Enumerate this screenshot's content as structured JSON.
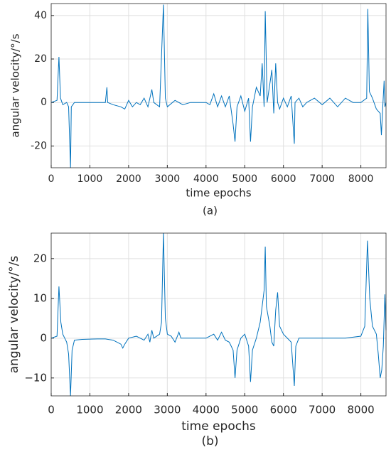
{
  "chart_data": [
    {
      "type": "line",
      "caption": "(a)",
      "x_label": "time epochs",
      "y_label": "angular velocity/°/s",
      "color": "#0072bd",
      "grid": true,
      "xlim": [
        0,
        8650
      ],
      "xticks": [
        0,
        1000,
        2000,
        3000,
        4000,
        5000,
        6000,
        7000,
        8000
      ],
      "ylim": [
        -30,
        45.5
      ],
      "yticks": [
        -20,
        0,
        20,
        40
      ],
      "x": [
        0,
        150,
        200,
        240,
        300,
        400,
        450,
        500,
        520,
        600,
        800,
        1000,
        1200,
        1400,
        1440,
        1460,
        1600,
        1800,
        1900,
        2000,
        2100,
        2200,
        2300,
        2400,
        2500,
        2600,
        2650,
        2800,
        2900,
        2950,
        3000,
        3200,
        3400,
        3600,
        4000,
        4100,
        4200,
        4300,
        4400,
        4500,
        4600,
        4700,
        4750,
        4800,
        4900,
        5000,
        5100,
        5150,
        5200,
        5300,
        5400,
        5450,
        5500,
        5530,
        5580,
        5700,
        5750,
        5800,
        5850,
        5900,
        6000,
        6100,
        6200,
        6280,
        6300,
        6400,
        6500,
        6600,
        6800,
        7000,
        7200,
        7400,
        7600,
        7800,
        8000,
        8150,
        8180,
        8220,
        8300,
        8400,
        8500,
        8530,
        8560,
        8600,
        8620,
        8650
      ],
      "values": [
        0,
        1,
        21,
        2,
        -1,
        0,
        -2,
        -30,
        -2,
        0,
        0,
        0,
        0,
        0,
        7,
        0,
        -1,
        -2,
        -3,
        1,
        -2,
        0,
        -1,
        2,
        -2,
        6,
        0,
        -2,
        45,
        2,
        -2,
        1,
        -1,
        0,
        0,
        -1,
        4,
        -2,
        3,
        -2,
        3,
        -10,
        -18,
        -2,
        3,
        -4,
        2,
        -18,
        -2,
        7,
        3,
        18,
        -2,
        42,
        0,
        15,
        -5,
        18,
        0,
        -3,
        2,
        -2,
        3,
        -19,
        0,
        2,
        -2,
        0,
        2,
        -1,
        2,
        -2,
        2,
        0,
        0,
        2,
        43,
        5,
        2,
        -3,
        -5,
        -15,
        -4,
        10,
        -2,
        0
      ]
    },
    {
      "type": "line",
      "caption": "(b)",
      "x_label": "time epochs",
      "y_label": "angular velocity/°/s",
      "color": "#0072bd",
      "grid": true,
      "xlim": [
        0,
        8650
      ],
      "xticks": [
        0,
        1000,
        2000,
        3000,
        4000,
        5000,
        6000,
        7000,
        8000
      ],
      "ylim": [
        -14.5,
        26.4
      ],
      "yticks": [
        {
          "value": -10,
          "label": "−10"
        },
        0,
        10,
        20
      ],
      "x": [
        0,
        150,
        200,
        250,
        300,
        400,
        450,
        500,
        540,
        600,
        800,
        1200,
        1400,
        1600,
        1800,
        1850,
        1900,
        2000,
        2200,
        2400,
        2500,
        2550,
        2600,
        2650,
        2800,
        2850,
        2900,
        2950,
        3000,
        3100,
        3200,
        3300,
        3350,
        3600,
        4000,
        4200,
        4300,
        4400,
        4500,
        4600,
        4700,
        4750,
        4800,
        4900,
        5000,
        5100,
        5150,
        5200,
        5300,
        5400,
        5500,
        5530,
        5560,
        5650,
        5700,
        5750,
        5800,
        5850,
        5900,
        6000,
        6200,
        6280,
        6320,
        6400,
        6800,
        7200,
        7600,
        8000,
        8100,
        8170,
        8230,
        8300,
        8400,
        8450,
        8500,
        8540,
        8580,
        8620,
        8650
      ],
      "values": [
        0,
        0.5,
        13,
        4,
        1,
        -1,
        -4,
        -14.5,
        -3,
        -0.5,
        -0.3,
        -0.2,
        -0.2,
        -0.5,
        -1.5,
        -2.5,
        -1.5,
        0,
        0.5,
        -0.5,
        1,
        -1,
        2,
        0,
        1,
        4,
        26.4,
        5,
        1,
        0.5,
        -1,
        1.5,
        0,
        0,
        0,
        1,
        -0.5,
        1.5,
        -0.5,
        -1,
        -3,
        -10,
        -3,
        0,
        1,
        -2,
        -11,
        -3,
        0,
        4,
        12,
        23,
        8,
        3,
        -1,
        -2,
        7,
        11.5,
        3,
        1,
        -1,
        -12,
        -2,
        0,
        0,
        0,
        0,
        0.5,
        3,
        24.5,
        10,
        3,
        1,
        -4,
        -10,
        -8,
        -2,
        11,
        2
      ]
    }
  ]
}
